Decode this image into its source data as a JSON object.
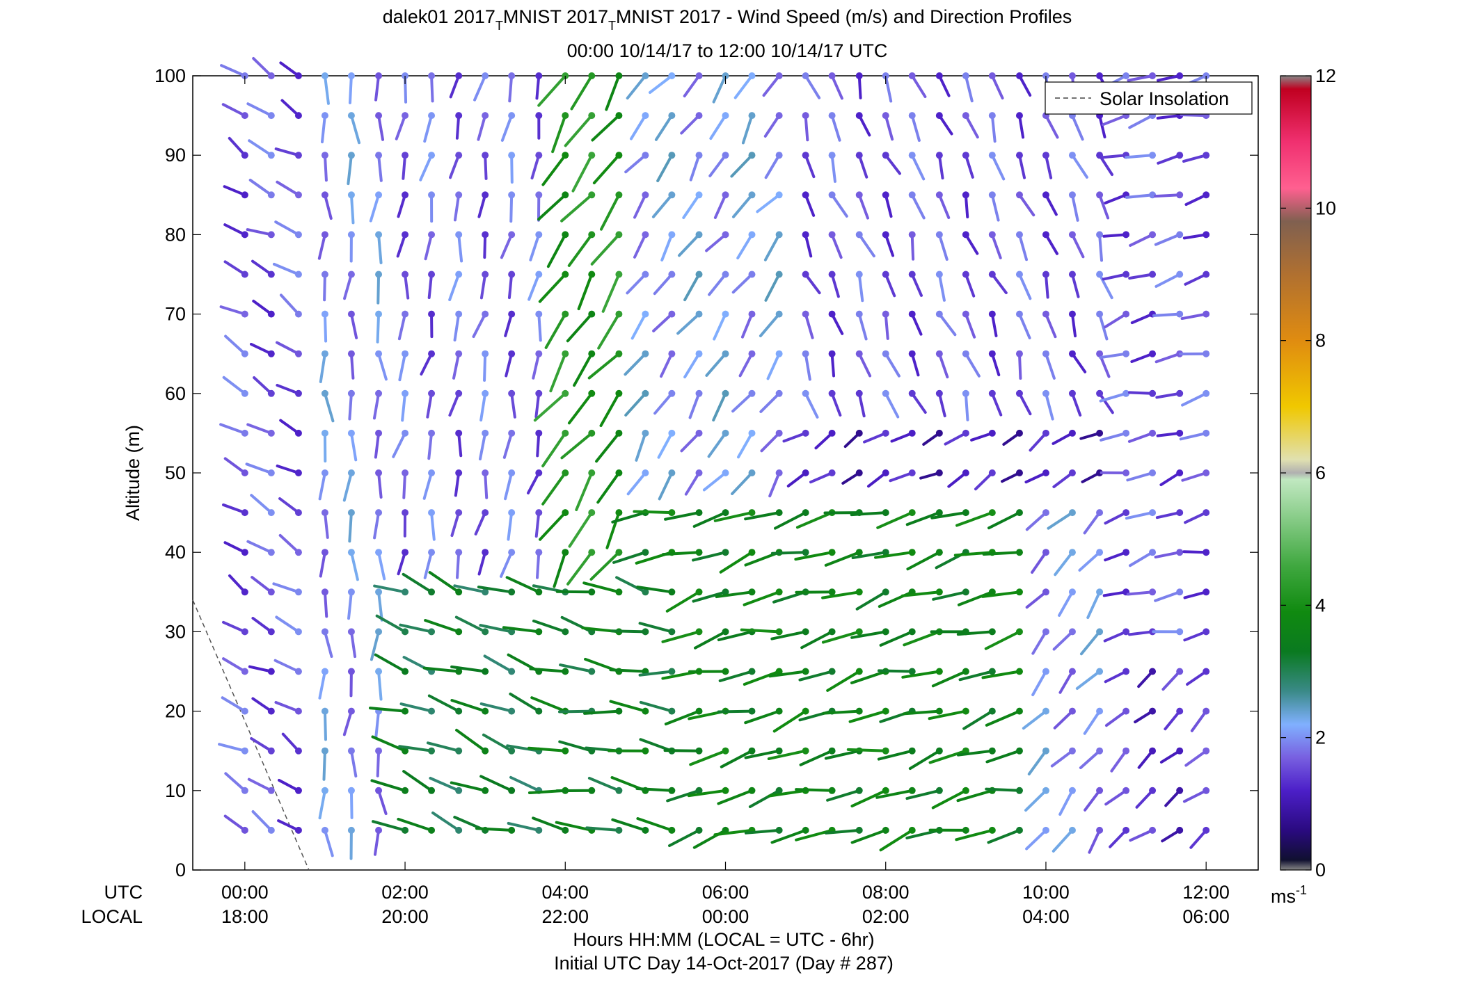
{
  "chart_data": {
    "type": "wind-barb-profile",
    "title_parts": {
      "prefix": "dalek01 2017",
      "sub": "T",
      "middle": "MNIST 2017",
      "suffix": "MNIST 2017 - Wind Speed (m/s) and Direction Profiles"
    },
    "subtitle": "00:00 10/14/17 to 12:00 10/14/17  UTC",
    "ylabel": "Altitude (m)",
    "ylim": [
      0,
      100
    ],
    "yticks": [
      0,
      10,
      20,
      30,
      40,
      50,
      60,
      70,
      80,
      90,
      100
    ],
    "xlim_hours": [
      -0.65,
      12.65
    ],
    "xticks_utc": [
      "00:00",
      "02:00",
      "04:00",
      "06:00",
      "08:00",
      "10:00",
      "12:00"
    ],
    "xticks_local": [
      "18:00",
      "20:00",
      "22:00",
      "00:00",
      "02:00",
      "04:00",
      "06:00"
    ],
    "xrow_label_utc": "UTC",
    "xrow_label_local": "LOCAL",
    "xlabel_line1": "Hours HH:MM  (LOCAL = UTC - 6hr)",
    "xlabel_line2": "Initial UTC Day 14-Oct-2017 (Day # 287)",
    "legend": {
      "entry": "Solar Insolation",
      "location": "top-right",
      "style": "dashed"
    },
    "solar_insolation": {
      "x_hours": [
        -0.65,
        0.8
      ],
      "y": [
        34,
        0
      ]
    },
    "colorbar": {
      "range": [
        0,
        12
      ],
      "ticks": [
        0,
        2,
        4,
        6,
        8,
        10,
        12
      ],
      "unit_base": "ms",
      "unit_exp": "-1",
      "colors": [
        {
          "v": 0.0,
          "c": "#888888"
        },
        {
          "v": 0.15,
          "c": "#101030"
        },
        {
          "v": 0.6,
          "c": "#2a0a80"
        },
        {
          "v": 1.2,
          "c": "#4c1fc8"
        },
        {
          "v": 1.7,
          "c": "#7860e0"
        },
        {
          "v": 2.2,
          "c": "#80b0ff"
        },
        {
          "v": 2.7,
          "c": "#3a8a88"
        },
        {
          "v": 3.3,
          "c": "#0a7a20"
        },
        {
          "v": 3.9,
          "c": "#108a10"
        },
        {
          "v": 4.6,
          "c": "#40a840"
        },
        {
          "v": 5.4,
          "c": "#90d090"
        },
        {
          "v": 5.9,
          "c": "#c0e8c0"
        },
        {
          "v": 6.0,
          "c": "#b0b0b0"
        },
        {
          "v": 6.2,
          "c": "#e0e0b0"
        },
        {
          "v": 7.0,
          "c": "#f0c800"
        },
        {
          "v": 8.0,
          "c": "#e08c10"
        },
        {
          "v": 9.0,
          "c": "#b07030"
        },
        {
          "v": 9.8,
          "c": "#806050"
        },
        {
          "v": 10.3,
          "c": "#ff6090"
        },
        {
          "v": 11.0,
          "c": "#f03070"
        },
        {
          "v": 11.8,
          "c": "#c00020"
        },
        {
          "v": 12.0,
          "c": "#888888"
        }
      ]
    },
    "time_hours": [
      0.0,
      0.33,
      0.67,
      1.0,
      1.33,
      1.67,
      2.0,
      2.33,
      2.67,
      3.0,
      3.33,
      3.67,
      4.0,
      4.33,
      4.67,
      5.0,
      5.33,
      5.67,
      6.0,
      6.33,
      6.67,
      7.0,
      7.33,
      7.67,
      8.0,
      8.33,
      8.67,
      9.0,
      9.33,
      9.67,
      10.0,
      10.33,
      10.67,
      11.0,
      11.33,
      11.67,
      12.0
    ],
    "altitudes_m": [
      5,
      10,
      15,
      20,
      25,
      30,
      35,
      40,
      45,
      50,
      55,
      60,
      65,
      70,
      75,
      80,
      85,
      90,
      95,
      100
    ],
    "regimes": [
      {
        "t": [
          0.0,
          0.9
        ],
        "z": [
          0,
          100
        ],
        "dir": 300,
        "spd": 1.6
      },
      {
        "t": [
          0.9,
          1.9
        ],
        "z": [
          0,
          100
        ],
        "dir": 180,
        "spd": 2.0
      },
      {
        "t": [
          1.9,
          3.8
        ],
        "z": [
          0,
          36
        ],
        "dir": 290,
        "spd": 3.2
      },
      {
        "t": [
          1.9,
          3.9
        ],
        "z": [
          36,
          100
        ],
        "dir": 190,
        "spd": 1.7
      },
      {
        "t": [
          3.9,
          5.4
        ],
        "z": [
          0,
          40
        ],
        "dir": 280,
        "spd": 3.4
      },
      {
        "t": [
          3.9,
          5.0
        ],
        "z": [
          40,
          100
        ],
        "dir": 215,
        "spd": 4.1
      },
      {
        "t": [
          5.0,
          9.7
        ],
        "z": [
          0,
          50
        ],
        "dir": 255,
        "spd": 3.6
      },
      {
        "t": [
          5.0,
          7.0
        ],
        "z": [
          50,
          100
        ],
        "dir": 215,
        "spd": 2.1
      },
      {
        "t": [
          7.0,
          10.9
        ],
        "z": [
          50,
          60
        ],
        "dir": 240,
        "spd": 1.1
      },
      {
        "t": [
          7.0,
          10.9
        ],
        "z": [
          60,
          100
        ],
        "dir": 160,
        "spd": 1.6
      },
      {
        "t": [
          9.7,
          10.9
        ],
        "z": [
          0,
          50
        ],
        "dir": 220,
        "spd": 2.0
      },
      {
        "t": [
          10.9,
          12.2
        ],
        "z": [
          0,
          30
        ],
        "dir": 230,
        "spd": 1.3
      },
      {
        "t": [
          10.9,
          12.2
        ],
        "z": [
          30,
          100
        ],
        "dir": 255,
        "spd": 1.6
      }
    ]
  }
}
